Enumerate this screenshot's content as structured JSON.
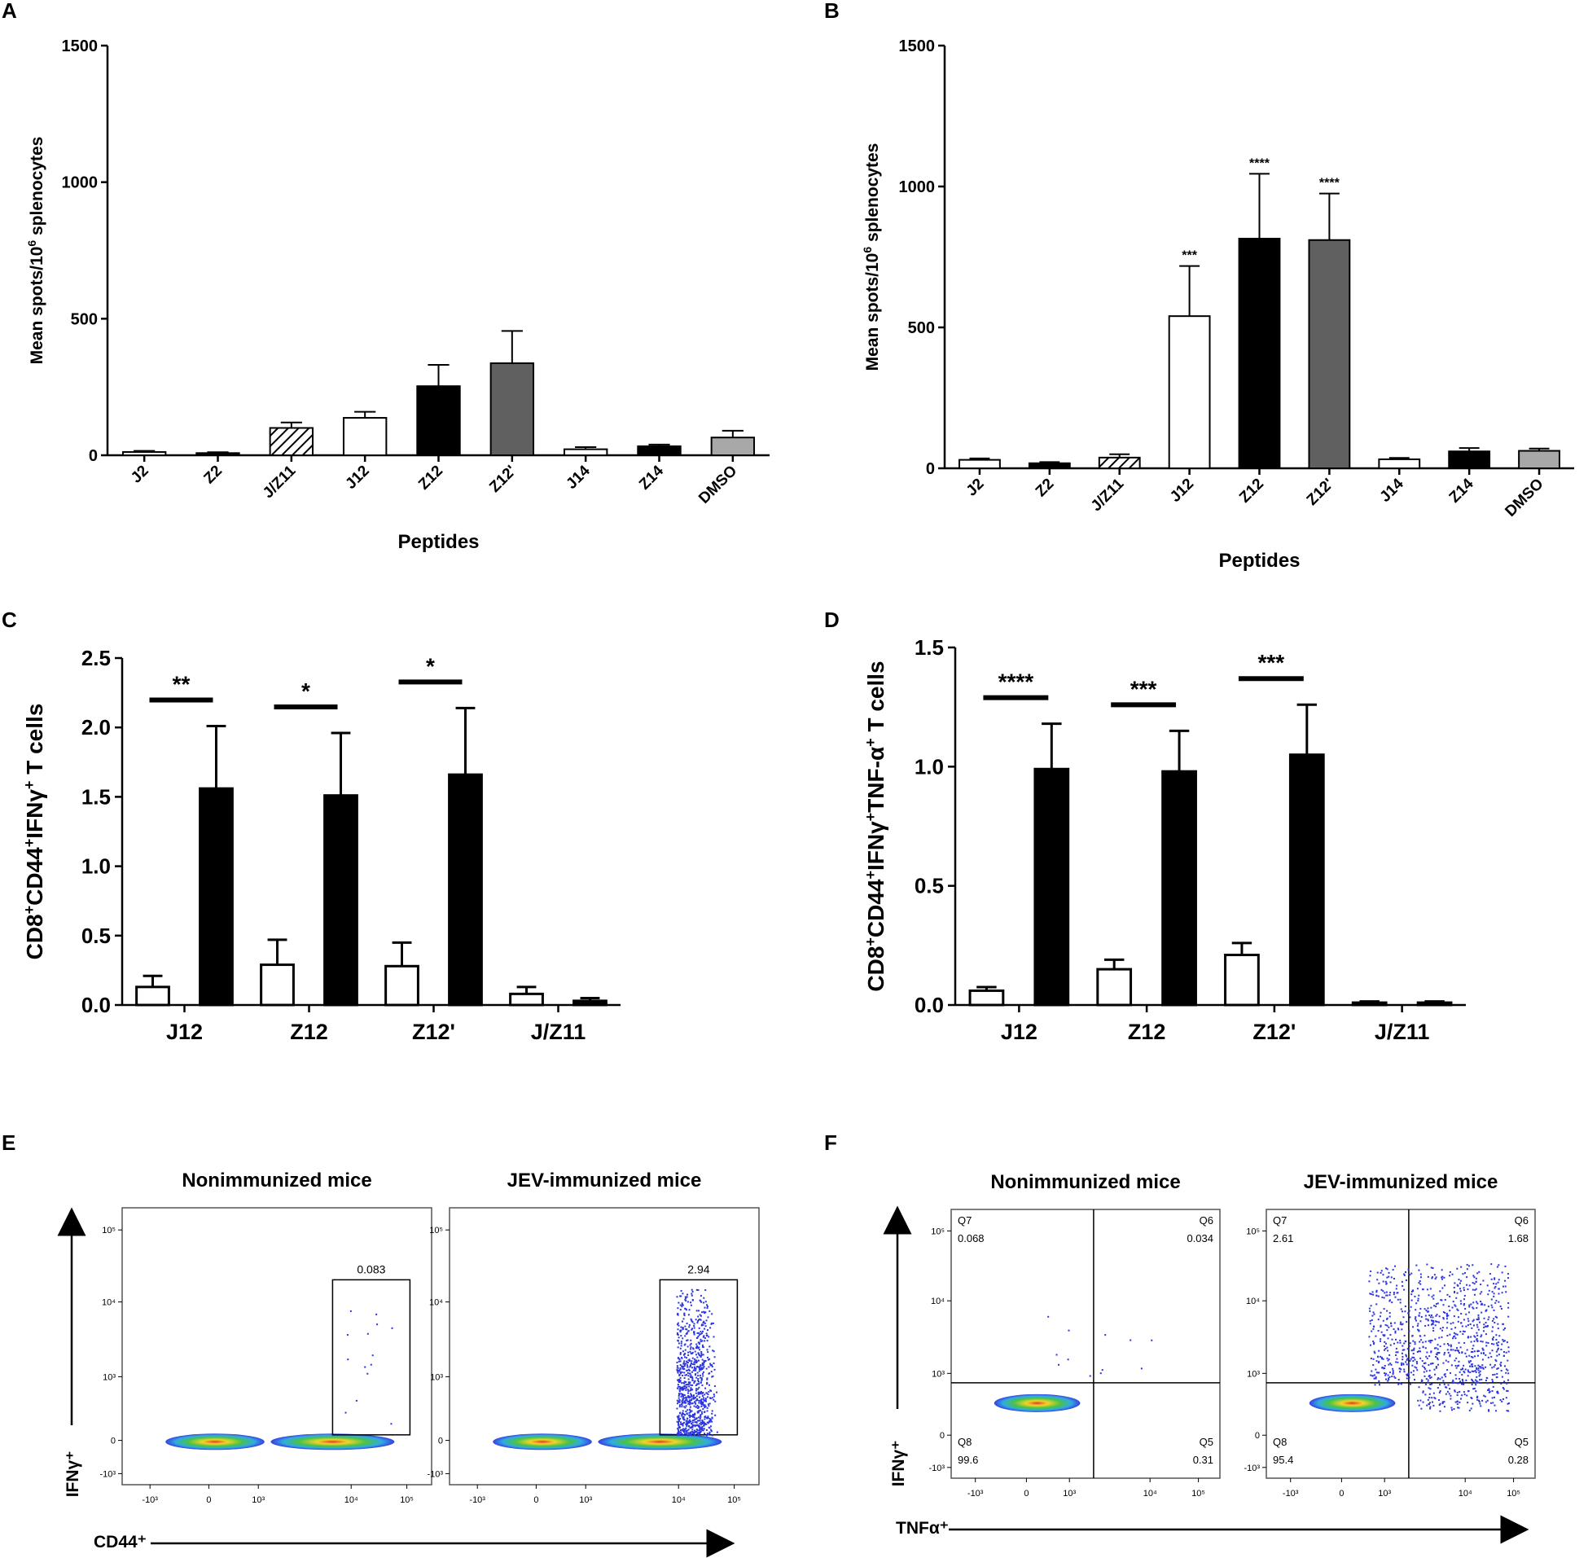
{
  "panels": {
    "A": "A",
    "B": "B",
    "C": "C",
    "D": "D",
    "E": "E",
    "F": "F"
  },
  "chart_data": [
    {
      "id": "A",
      "type": "bar",
      "title": "",
      "xlabel": "Peptides",
      "ylabel": "Mean spots/10^6 splenocytes",
      "ylabel_main": "Mean spots/10",
      "ylabel_sup": "6",
      "ylabel_tail": " splenocytes",
      "ylim": [
        0,
        1500
      ],
      "yticks": [
        "0",
        "500",
        "1000",
        "1500"
      ],
      "ytick_values": [
        0,
        500,
        1000,
        1500
      ],
      "categories": [
        "J2",
        "Z2",
        "J/Z11",
        "J12",
        "Z12",
        "Z12'",
        "J14",
        "Z14",
        "DMSO"
      ],
      "values": [
        12,
        8,
        100,
        137,
        253,
        337,
        22,
        33,
        65
      ],
      "errors": [
        4,
        3,
        20,
        22,
        78,
        118,
        8,
        6,
        25
      ],
      "fills": [
        "white",
        "black",
        "hatch",
        "white",
        "black",
        "#606060",
        "white",
        "black",
        "#a8a8a8"
      ],
      "significance": [
        "",
        "",
        "",
        "",
        "",
        "",
        "",
        "",
        ""
      ]
    },
    {
      "id": "B",
      "type": "bar",
      "title": "",
      "xlabel": "Peptides",
      "ylabel": "Mean spots/10^6 splenocytes",
      "ylabel_main": "Mean spots/10",
      "ylabel_sup": "6",
      "ylabel_tail": " splenocytes",
      "ylim": [
        0,
        1500
      ],
      "yticks": [
        "0",
        "500",
        "1000",
        "1500"
      ],
      "ytick_values": [
        0,
        500,
        1000,
        1500
      ],
      "categories": [
        "J2",
        "Z2",
        "J/Z11",
        "J12",
        "Z12",
        "Z12'",
        "J14",
        "Z14",
        "DMSO"
      ],
      "values": [
        30,
        18,
        38,
        540,
        815,
        810,
        32,
        60,
        62
      ],
      "errors": [
        5,
        4,
        12,
        178,
        230,
        165,
        5,
        12,
        8
      ],
      "fills": [
        "white",
        "black",
        "hatch",
        "white",
        "black",
        "#606060",
        "white",
        "black",
        "#a8a8a8"
      ],
      "significance": [
        "",
        "",
        "",
        "***",
        "****",
        "****",
        "",
        "",
        ""
      ]
    },
    {
      "id": "C",
      "type": "bar",
      "title": "",
      "xlabel": "",
      "ylabel": "CD8+CD44+IFNγ+ T cells",
      "ylabel_parts": [
        [
          "CD8",
          ""
        ],
        [
          "+",
          "sup"
        ],
        [
          "CD44",
          ""
        ],
        [
          "+",
          "sup"
        ],
        [
          "IFNγ",
          ""
        ],
        [
          "+",
          "sup"
        ],
        [
          " T cells",
          ""
        ]
      ],
      "ylim": [
        0,
        2.5
      ],
      "yticks": [
        "0.0",
        "0.5",
        "1.0",
        "1.5",
        "2.0",
        "2.5"
      ],
      "ytick_values": [
        0,
        0.5,
        1.0,
        1.5,
        2.0,
        2.5
      ],
      "categories": [
        "J12",
        "Z12",
        "Z12'",
        "J/Z11"
      ],
      "series": [
        {
          "name": "Nonimmunized",
          "fill": "white",
          "values": [
            0.13,
            0.29,
            0.28,
            0.08
          ],
          "errors": [
            0.08,
            0.18,
            0.17,
            0.05
          ]
        },
        {
          "name": "JEV-immunized",
          "fill": "black",
          "values": [
            1.56,
            1.51,
            1.66,
            0.03
          ],
          "errors": [
            0.45,
            0.45,
            0.48,
            0.02
          ]
        }
      ],
      "significance": [
        "**",
        "*",
        "*",
        ""
      ]
    },
    {
      "id": "D",
      "type": "bar",
      "title": "",
      "xlabel": "",
      "ylabel": "CD8+CD44+IFNγ+TNF-α+ T cells",
      "ylabel_parts": [
        [
          "CD8",
          ""
        ],
        [
          "+",
          "sup"
        ],
        [
          "CD44",
          ""
        ],
        [
          "+",
          "sup"
        ],
        [
          "IFNγ",
          ""
        ],
        [
          "+",
          "sup"
        ],
        [
          "TNF-α",
          ""
        ],
        [
          "+",
          "sup"
        ],
        [
          " T cells",
          ""
        ]
      ],
      "ylim": [
        0,
        1.5
      ],
      "yticks": [
        "0.0",
        "0.5",
        "1.0",
        "1.5"
      ],
      "ytick_values": [
        0,
        0.5,
        1.0,
        1.5
      ],
      "categories": [
        "J12",
        "Z12",
        "Z12'",
        "J/Z11"
      ],
      "series": [
        {
          "name": "Nonimmunized",
          "fill": "white",
          "values": [
            0.06,
            0.15,
            0.21,
            0.01
          ],
          "errors": [
            0.015,
            0.04,
            0.05,
            0.005
          ]
        },
        {
          "name": "JEV-immunized",
          "fill": "black",
          "values": [
            0.99,
            0.98,
            1.05,
            0.01
          ],
          "errors": [
            0.19,
            0.17,
            0.21,
            0.005
          ]
        }
      ],
      "significance": [
        "****",
        "***",
        "***",
        ""
      ]
    },
    {
      "id": "E",
      "type": "scatter",
      "title": "",
      "xlabel": "CD44⁺",
      "ylabel": "IFNγ⁺",
      "xticks": [
        "-10³",
        "0",
        "10³",
        "10⁴",
        "10⁵"
      ],
      "yticks": [
        "10⁵",
        "10⁴",
        "10³",
        "0",
        "-10³"
      ],
      "plots": [
        {
          "title": "Nonimmunized mice",
          "gate_value": "0.083"
        },
        {
          "title": "JEV-immunized mice",
          "gate_value": "2.94"
        }
      ]
    },
    {
      "id": "F",
      "type": "scatter",
      "title": "",
      "xlabel": "TNFα⁺",
      "ylabel": "IFNγ⁺",
      "xticks": [
        "-10³",
        "0",
        "10³",
        "10⁴",
        "10⁵"
      ],
      "yticks": [
        "10⁵",
        "10⁴",
        "10³",
        "0",
        "-10³"
      ],
      "plots": [
        {
          "title": "Nonimmunized mice",
          "quadrants": {
            "Q7": "0.068",
            "Q6": "0.034",
            "Q8": "99.6",
            "Q5": "0.31"
          }
        },
        {
          "title": "JEV-immunized mice",
          "quadrants": {
            "Q7": "2.61",
            "Q6": "1.68",
            "Q8": "95.4",
            "Q5": "0.28"
          }
        }
      ]
    }
  ],
  "colors": {
    "axis": "#000000",
    "dark_gray_bar": "#606060",
    "light_gray_bar": "#a8a8a8",
    "dot_blue": "#2b36e0",
    "density_green": "#3fbf3f",
    "density_yellow": "#f2d21c",
    "density_red": "#e0301e"
  }
}
